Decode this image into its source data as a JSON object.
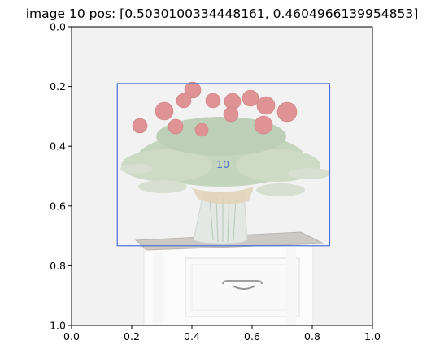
{
  "title": "image 10   pos: [0.5030100334448161, 0.4604966139954853]",
  "chart_data": {
    "type": "scatter",
    "title": "image 10   pos: [0.5030100334448161, 0.4604966139954853]",
    "xlabel": "",
    "ylabel": "",
    "xlim": [
      0.0,
      1.0
    ],
    "ylim": [
      1.0,
      0.0
    ],
    "y_inverted": true,
    "grid": false,
    "x_ticks": [
      "0.0",
      "0.2",
      "0.4",
      "0.6",
      "0.8",
      "1.0"
    ],
    "y_ticks": [
      "0.0",
      "0.2",
      "0.4",
      "0.6",
      "0.8",
      "1.0"
    ],
    "x_tick_values": [
      0.0,
      0.2,
      0.4,
      0.6,
      0.8,
      1.0
    ],
    "y_tick_values": [
      0.0,
      0.2,
      0.4,
      0.6,
      0.8,
      1.0
    ],
    "background_image": "faded-photo-red-roses-in-glass-vase-on-white-nightstand",
    "box": {
      "label": "10",
      "x_min": 0.152,
      "x_max": 0.858,
      "y_min": 0.19,
      "y_max": 0.733,
      "color": "#4a6fd8"
    },
    "point": {
      "x": 0.5030100334448161,
      "y": 0.4604966139954853
    }
  }
}
